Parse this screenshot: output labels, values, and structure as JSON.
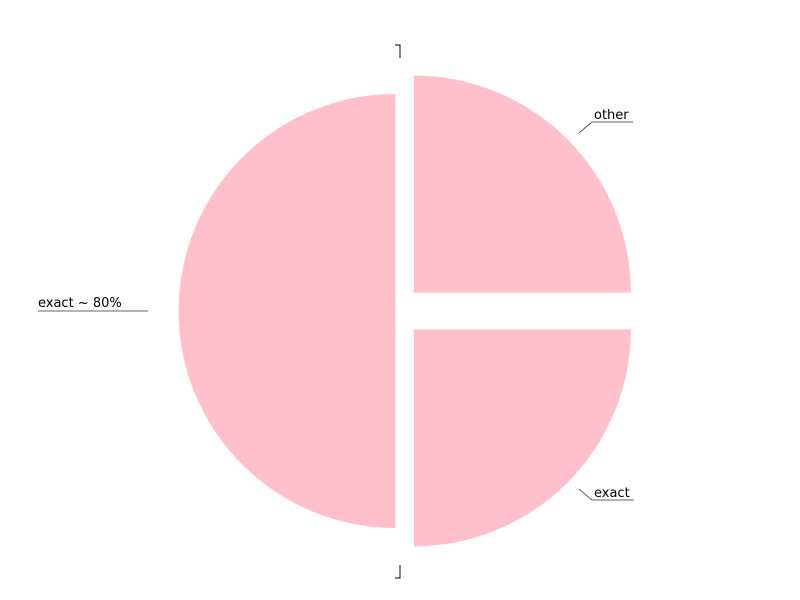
{
  "chart_data": {
    "type": "pie",
    "slices": [
      {
        "label": "exact ~ 80%",
        "value": 50,
        "exploded": false
      },
      {
        "label": "other",
        "value": 25,
        "exploded": true
      },
      {
        "label": "exact",
        "value": 25,
        "exploded": true
      }
    ],
    "colors": [
      "#FFC0CB",
      "#FFC0CB",
      "#FFC0CB"
    ],
    "start_angle_deg": 90,
    "direction": "counterclockwise",
    "legend": "none"
  }
}
